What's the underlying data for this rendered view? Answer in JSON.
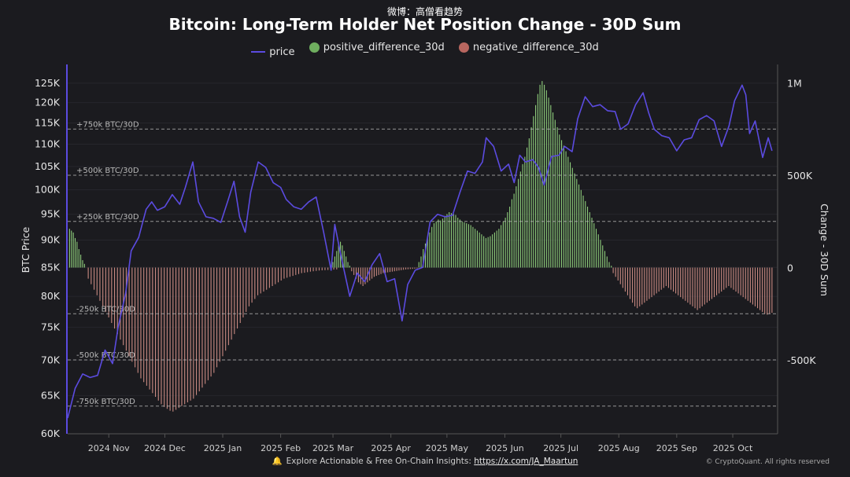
{
  "watermark": "微博：高僧看趋势",
  "footer": {
    "text": "Explore Actionable & Free On-Chain Insights: ",
    "link": "https://x.com/JA_Maartun",
    "copyright": "© CryptoQuant. All rights reserved",
    "bell_icon": "bell-icon"
  },
  "colors": {
    "price": "#5b4be0",
    "positive": "#8fcf7c",
    "negative": "#c98a82",
    "positive_legend": "#6fae5f",
    "negative_legend": "#b8665f",
    "background": "#1b1b1f"
  },
  "chart_data": {
    "type": "bar",
    "title": "Bitcoin: Long-Term Holder Net Position Change - 30D Sum",
    "ylabel_left": "BTC Price",
    "ylabel_right": "Change - 30D Sum",
    "y_left_ticks": [
      "125K",
      "120K",
      "115K",
      "110K",
      "105K",
      "100K",
      "95K",
      "90K",
      "85K",
      "80K",
      "75K",
      "70K",
      "65K",
      "60K"
    ],
    "y_left_tick_values": [
      125000,
      120000,
      115000,
      110000,
      105000,
      100000,
      95000,
      90000,
      85000,
      80000,
      75000,
      70000,
      65000,
      60000
    ],
    "y_left_scale": "log",
    "y_left_range": [
      60000,
      130000
    ],
    "y_right_ticks": [
      "1M",
      "500K",
      "0",
      "-500K"
    ],
    "y_right_tick_values": [
      1000000,
      500000,
      0,
      -500000
    ],
    "y_right_range": [
      -900000,
      1100000
    ],
    "x_ticks": [
      "2024 Nov",
      "2024 Dec",
      "2025 Jan",
      "2025 Feb",
      "2025 Mar",
      "2025 Apr",
      "2025 May",
      "2025 Jun",
      "2025 Jul",
      "2025 Aug",
      "2025 Sep",
      "2025 Oct"
    ],
    "x_tick_dates": [
      "2024-11-01",
      "2024-12-01",
      "2025-01-01",
      "2025-02-01",
      "2025-03-01",
      "2025-04-01",
      "2025-05-01",
      "2025-06-01",
      "2025-07-01",
      "2025-08-01",
      "2025-09-01",
      "2025-10-01"
    ],
    "x_range": [
      "2024-10-10",
      "2025-10-25"
    ],
    "reference_lines": [
      {
        "label": "+750k BTC/30D",
        "value": 750000
      },
      {
        "label": "+500k BTC/30D",
        "value": 500000
      },
      {
        "label": "+250k BTC/30D",
        "value": 250000
      },
      {
        "label": "-250k BTC/30D",
        "value": -250000
      },
      {
        "label": "-500k BTC/30D",
        "value": -500000
      },
      {
        "label": "-750k BTC/30D",
        "value": -750000
      }
    ],
    "series": [
      {
        "name": "price",
        "type": "line",
        "axis": "left",
        "points": [
          [
            "2024-10-10",
            62000
          ],
          [
            "2024-10-14",
            66000
          ],
          [
            "2024-10-18",
            68000
          ],
          [
            "2024-10-22",
            67500
          ],
          [
            "2024-10-26",
            67800
          ],
          [
            "2024-10-30",
            71500
          ],
          [
            "2024-11-03",
            69500
          ],
          [
            "2024-11-06",
            75000
          ],
          [
            "2024-11-10",
            80500
          ],
          [
            "2024-11-13",
            88000
          ],
          [
            "2024-11-17",
            90500
          ],
          [
            "2024-11-21",
            96000
          ],
          [
            "2024-11-24",
            97500
          ],
          [
            "2024-11-27",
            95800
          ],
          [
            "2024-12-01",
            96500
          ],
          [
            "2024-12-05",
            99000
          ],
          [
            "2024-12-09",
            97000
          ],
          [
            "2024-12-12",
            100500
          ],
          [
            "2024-12-16",
            106000
          ],
          [
            "2024-12-19",
            97500
          ],
          [
            "2024-12-23",
            94500
          ],
          [
            "2024-12-27",
            94200
          ],
          [
            "2024-12-31",
            93400
          ],
          [
            "2025-01-04",
            98000
          ],
          [
            "2025-01-07",
            101800
          ],
          [
            "2025-01-10",
            94500
          ],
          [
            "2025-01-13",
            91500
          ],
          [
            "2025-01-16",
            99500
          ],
          [
            "2025-01-20",
            106000
          ],
          [
            "2025-01-24",
            104800
          ],
          [
            "2025-01-28",
            101500
          ],
          [
            "2025-02-01",
            100500
          ],
          [
            "2025-02-04",
            98000
          ],
          [
            "2025-02-08",
            96500
          ],
          [
            "2025-02-12",
            96000
          ],
          [
            "2025-02-16",
            97500
          ],
          [
            "2025-02-20",
            98500
          ],
          [
            "2025-02-24",
            91500
          ],
          [
            "2025-02-28",
            84500
          ],
          [
            "2025-03-02",
            93000
          ],
          [
            "2025-03-05",
            87500
          ],
          [
            "2025-03-10",
            80000
          ],
          [
            "2025-03-14",
            84000
          ],
          [
            "2025-03-18",
            82500
          ],
          [
            "2025-03-22",
            85500
          ],
          [
            "2025-03-26",
            87500
          ],
          [
            "2025-03-30",
            82500
          ],
          [
            "2025-04-03",
            83000
          ],
          [
            "2025-04-07",
            76000
          ],
          [
            "2025-04-10",
            82000
          ],
          [
            "2025-04-14",
            84500
          ],
          [
            "2025-04-18",
            85000
          ],
          [
            "2025-04-22",
            93500
          ],
          [
            "2025-04-26",
            95000
          ],
          [
            "2025-04-30",
            94500
          ],
          [
            "2025-05-04",
            94800
          ],
          [
            "2025-05-08",
            99500
          ],
          [
            "2025-05-12",
            104000
          ],
          [
            "2025-05-16",
            103500
          ],
          [
            "2025-05-20",
            106000
          ],
          [
            "2025-05-22",
            111500
          ],
          [
            "2025-05-26",
            109500
          ],
          [
            "2025-05-30",
            104000
          ],
          [
            "2025-06-03",
            105500
          ],
          [
            "2025-06-06",
            101500
          ],
          [
            "2025-06-09",
            107500
          ],
          [
            "2025-06-12",
            106000
          ],
          [
            "2025-06-16",
            106500
          ],
          [
            "2025-06-19",
            104800
          ],
          [
            "2025-06-22",
            101000
          ],
          [
            "2025-06-26",
            107200
          ],
          [
            "2025-06-30",
            107500
          ],
          [
            "2025-07-03",
            109500
          ],
          [
            "2025-07-07",
            108300
          ],
          [
            "2025-07-10",
            116000
          ],
          [
            "2025-07-14",
            121500
          ],
          [
            "2025-07-18",
            119000
          ],
          [
            "2025-07-22",
            119500
          ],
          [
            "2025-07-26",
            118000
          ],
          [
            "2025-07-30",
            117800
          ],
          [
            "2025-08-02",
            113500
          ],
          [
            "2025-08-06",
            114800
          ],
          [
            "2025-08-10",
            119500
          ],
          [
            "2025-08-14",
            122500
          ],
          [
            "2025-08-17",
            117500
          ],
          [
            "2025-08-20",
            113500
          ],
          [
            "2025-08-24",
            112000
          ],
          [
            "2025-08-28",
            111500
          ],
          [
            "2025-09-01",
            108500
          ],
          [
            "2025-09-05",
            111000
          ],
          [
            "2025-09-09",
            111500
          ],
          [
            "2025-09-13",
            115800
          ],
          [
            "2025-09-17",
            116800
          ],
          [
            "2025-09-21",
            115500
          ],
          [
            "2025-09-25",
            109500
          ],
          [
            "2025-09-29",
            114300
          ],
          [
            "2025-10-02",
            120500
          ],
          [
            "2025-10-06",
            124500
          ],
          [
            "2025-10-08",
            122000
          ],
          [
            "2025-10-10",
            112500
          ],
          [
            "2025-10-13",
            115500
          ],
          [
            "2025-10-17",
            107000
          ],
          [
            "2025-10-20",
            111500
          ],
          [
            "2025-10-22",
            108500
          ]
        ]
      },
      {
        "name": "positive_difference_30d",
        "type": "bar",
        "axis": "right",
        "segments": [
          {
            "start": "2024-10-11",
            "end": "2024-10-19",
            "values": [
              210000,
              200000,
              190000,
              160000,
              140000,
              100000,
              70000,
              40000,
              20000
            ]
          },
          {
            "start": "2025-03-01",
            "end": "2025-03-10",
            "values": [
              30000,
              60000,
              90000,
              120000,
              140000,
              120000,
              90000,
              60000,
              30000,
              10000
            ]
          },
          {
            "start": "2025-04-16",
            "end": "2025-07-28",
            "values": [
              30000,
              60000,
              100000,
              130000,
              160000,
              190000,
              220000,
              240000,
              250000,
              260000,
              255000,
              265000,
              280000,
              290000,
              300000,
              295000,
              290000,
              285000,
              270000,
              260000,
              250000,
              245000,
              240000,
              235000,
              230000,
              220000,
              210000,
              200000,
              190000,
              180000,
              170000,
              160000,
              165000,
              170000,
              180000,
              190000,
              200000,
              210000,
              230000,
              250000,
              270000,
              300000,
              330000,
              370000,
              400000,
              440000,
              480000,
              520000,
              560000,
              600000,
              650000,
              700000,
              760000,
              820000,
              880000,
              940000,
              990000,
              1010000,
              990000,
              960000,
              920000,
              880000,
              840000,
              800000,
              760000,
              720000,
              690000,
              660000,
              630000,
              600000,
              570000,
              540000,
              510000,
              480000,
              450000,
              420000,
              390000,
              360000,
              330000,
              300000,
              270000,
              240000,
              210000,
              180000,
              150000,
              120000,
              90000,
              60000,
              30000,
              10000
            ]
          }
        ]
      },
      {
        "name": "negative_difference_30d",
        "type": "bar",
        "axis": "right",
        "segments": [
          {
            "start": "2024-10-21",
            "end": "2025-03-03",
            "values": [
              -60000,
              -90000,
              -120000,
              -150000,
              -180000,
              -210000,
              -240000,
              -270000,
              -300000,
              -330000,
              -360000,
              -390000,
              -420000,
              -450000,
              -480000,
              -510000,
              -540000,
              -570000,
              -600000,
              -620000,
              -640000,
              -660000,
              -680000,
              -700000,
              -720000,
              -740000,
              -755000,
              -765000,
              -775000,
              -780000,
              -770000,
              -760000,
              -750000,
              -740000,
              -730000,
              -720000,
              -710000,
              -690000,
              -670000,
              -650000,
              -630000,
              -610000,
              -590000,
              -570000,
              -540000,
              -510000,
              -480000,
              -450000,
              -420000,
              -390000,
              -360000,
              -330000,
              -300000,
              -270000,
              -240000,
              -210000,
              -190000,
              -170000,
              -150000,
              -140000,
              -130000,
              -120000,
              -110000,
              -100000,
              -90000,
              -80000,
              -70000,
              -60000,
              -55000,
              -50000,
              -45000,
              -40000,
              -35000,
              -30000,
              -28000,
              -25000,
              -22000,
              -20000,
              -18000,
              -16000,
              -15000,
              -14000,
              -13000,
              -12000,
              -11000,
              -10000
            ]
          },
          {
            "start": "2025-03-11",
            "end": "2025-04-15",
            "values": [
              -20000,
              -40000,
              -60000,
              -80000,
              -90000,
              -100000,
              -90000,
              -80000,
              -70000,
              -60000,
              -50000,
              -45000,
              -40000,
              -35000,
              -30000,
              -28000,
              -26000,
              -24000,
              -22000,
              -20000,
              -18000,
              -16000,
              -14000,
              -12000,
              -10000,
              -9000,
              -8000,
              -7000,
              -6000,
              -5000
            ]
          },
          {
            "start": "2025-07-29",
            "end": "2025-10-22",
            "values": [
              -30000,
              -50000,
              -70000,
              -90000,
              -110000,
              -130000,
              -150000,
              -170000,
              -190000,
              -210000,
              -220000,
              -210000,
              -200000,
              -190000,
              -180000,
              -170000,
              -160000,
              -150000,
              -140000,
              -130000,
              -120000,
              -110000,
              -100000,
              -110000,
              -120000,
              -130000,
              -140000,
              -150000,
              -160000,
              -170000,
              -180000,
              -190000,
              -200000,
              -210000,
              -220000,
              -230000,
              -220000,
              -210000,
              -200000,
              -190000,
              -180000,
              -170000,
              -160000,
              -150000,
              -140000,
              -130000,
              -120000,
              -110000,
              -100000,
              -110000,
              -120000,
              -130000,
              -140000,
              -150000,
              -160000,
              -170000,
              -180000,
              -190000,
              -200000,
              -210000,
              -220000,
              -230000,
              -240000,
              -250000,
              -255000,
              -250000,
              -245000
            ]
          }
        ]
      }
    ]
  }
}
